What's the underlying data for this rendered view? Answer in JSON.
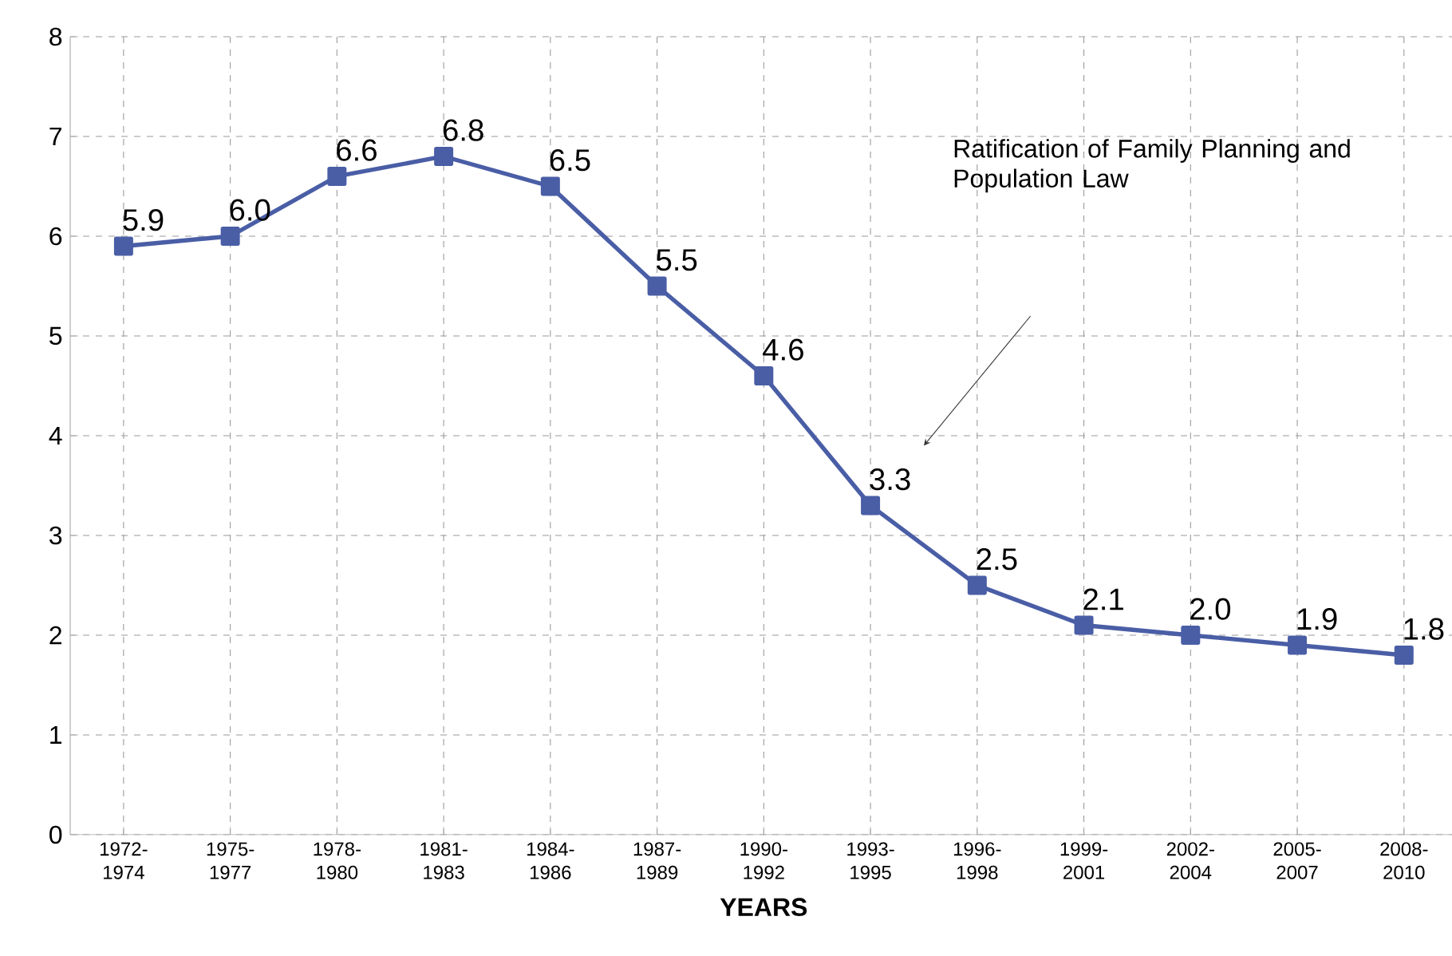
{
  "chart_data": {
    "type": "line",
    "xlabel": "YEARS",
    "categories": [
      "1972-1974",
      "1975-1977",
      "1978-1980",
      "1981-1983",
      "1984-1986",
      "1987-1989",
      "1990-1992",
      "1993-1995",
      "1996-1998",
      "1999-2001",
      "2002-2004",
      "2005-2007",
      "2008-2010"
    ],
    "values": [
      5.9,
      6.0,
      6.6,
      6.8,
      6.5,
      5.5,
      4.6,
      3.3,
      2.5,
      2.1,
      2.0,
      1.9,
      1.8
    ],
    "value_labels": [
      "5.9",
      "6.0",
      "6.6",
      "6.8",
      "6.5",
      "5.5",
      "4.6",
      "3.3",
      "2.5",
      "2.1",
      "2.0",
      "1.9",
      "1.8"
    ],
    "color": "#4a5ea6",
    "marker": "square",
    "line_style": "solid",
    "grid": true,
    "ylim": [
      0,
      8
    ],
    "yticks": [
      0,
      1,
      2,
      3,
      4,
      5,
      6,
      7,
      8
    ],
    "annotations": [
      "Ratification of Family Planning and Population Law"
    ]
  }
}
